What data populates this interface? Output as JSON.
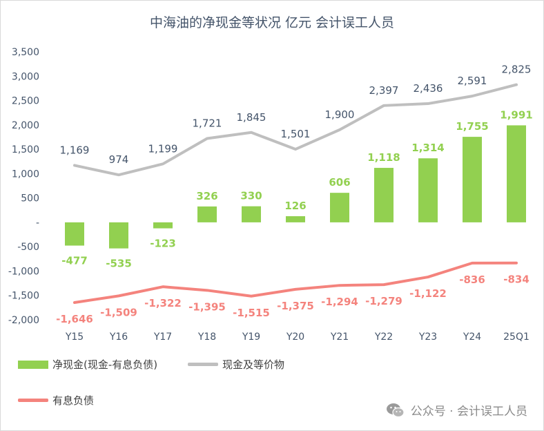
{
  "chart_data": {
    "type": "bar",
    "title": "中海油的净现金等状况 亿元 会计误工人员",
    "categories": [
      "Y15",
      "Y16",
      "Y17",
      "Y18",
      "Y19",
      "Y20",
      "Y21",
      "Y22",
      "Y23",
      "Y24",
      "25Q1"
    ],
    "ylim": [
      -2000,
      3500
    ],
    "yticks": [
      3500,
      3000,
      2500,
      2000,
      1500,
      1000,
      500,
      0,
      -500,
      -1000,
      -1500,
      -2000
    ],
    "ytick_labels": [
      "3,500",
      "3,000",
      "2,500",
      "2,000",
      "1,500",
      "1,000",
      "500",
      "-",
      "-500",
      "-1,000",
      "-1,500",
      "-2,000"
    ],
    "grid": false,
    "legend_position": "bottom",
    "series": [
      {
        "name": "净现金(现金-有息负债)",
        "type": "bar",
        "color": "#92d050",
        "values": [
          -477,
          -535,
          -123,
          326,
          330,
          126,
          606,
          1118,
          1314,
          1755,
          1991
        ]
      },
      {
        "name": "现金及等价物",
        "type": "line",
        "color": "#bfbfbf",
        "label_color": "#44546a",
        "values": [
          1169,
          974,
          1199,
          1721,
          1845,
          1501,
          1900,
          2397,
          2436,
          2591,
          2825
        ]
      },
      {
        "name": "有息负债",
        "type": "line",
        "color": "#f4837d",
        "label_color": "#f4837d",
        "values": [
          -1646,
          -1509,
          -1322,
          -1395,
          -1515,
          -1375,
          -1294,
          -1279,
          -1122,
          -836,
          -834
        ]
      }
    ]
  },
  "watermark": {
    "text": "公众号 · 会计误工人员",
    "icon": "wechat-icon"
  }
}
